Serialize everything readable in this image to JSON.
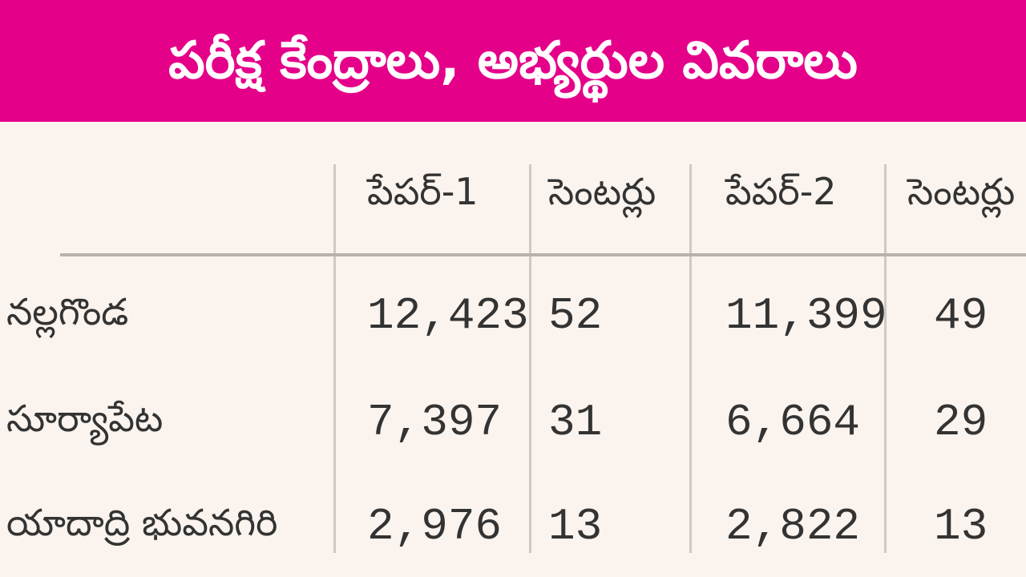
{
  "header": {
    "title": "పరీక్ష కేంద్రాలు, అభ్యర్థుల వివరాలు"
  },
  "table": {
    "columns": [
      "పేపర్-1",
      "సెంటర్లు",
      "పేపర్-2",
      "సెంటర్లు"
    ],
    "rows": [
      [
        "నల్లగొండ",
        "12,423",
        "52",
        "11,399",
        "49"
      ],
      [
        "సూర్యాపేట",
        "7,397",
        "31",
        "6,664",
        "29"
      ],
      [
        "యాదాద్రి భువనగిరి",
        "2,976",
        "13",
        "2,822",
        "13"
      ]
    ]
  }
}
